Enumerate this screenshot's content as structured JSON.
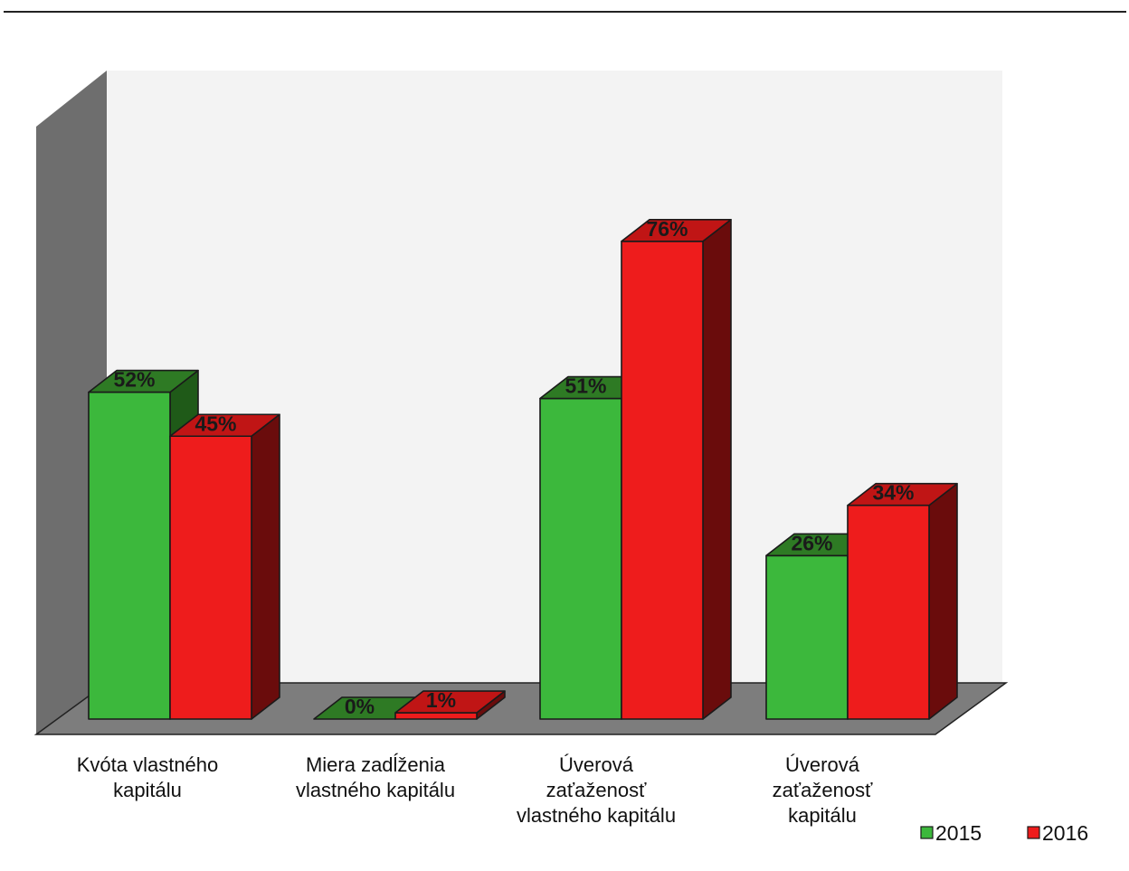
{
  "chart_data": {
    "type": "bar",
    "title": "",
    "xlabel": "",
    "ylabel": "",
    "ylim": [
      0,
      100
    ],
    "three_d": true,
    "grid": false,
    "legend_position": "bottom-right",
    "categories": [
      [
        "Kvóta vlastného",
        "kapitálu"
      ],
      [
        "Miera zadĺženia",
        "vlastného kapitálu"
      ],
      [
        "Úverová",
        "zaťaženosť",
        "vlastného kapitálu"
      ],
      [
        "Úverová",
        "zaťaženosť",
        "kapitálu"
      ]
    ],
    "series": [
      {
        "name": "2015",
        "values": [
          52,
          0,
          51,
          26
        ],
        "labels": [
          "52%",
          "0%",
          "51%",
          "26%"
        ],
        "color": "#3cb83c",
        "top_color": "#2e7a24",
        "side_color": "#1f5a18"
      },
      {
        "name": "2016",
        "values": [
          45,
          1,
          76,
          34
        ],
        "labels": [
          "45%",
          "1%",
          "76%",
          "34%"
        ],
        "color": "#ee1c1c",
        "top_color": "#c01515",
        "side_color": "#6a0c0c"
      }
    ],
    "colors": {
      "back_wall": "#f3f3f3",
      "side_wall": "#6e6e6e",
      "floor": "#7d7d7d"
    }
  }
}
